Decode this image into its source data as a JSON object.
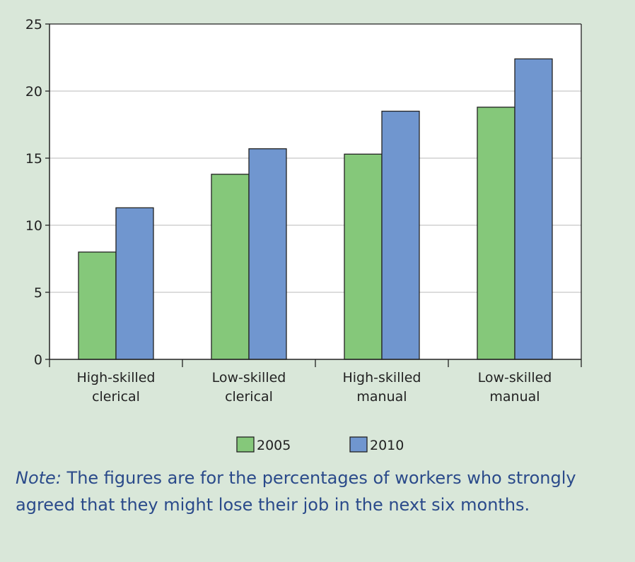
{
  "chart_data": {
    "type": "bar",
    "categories": [
      "High-skilled clerical",
      "Low-skilled clerical",
      "High-skilled manual",
      "Low-skilled manual"
    ],
    "category_lines": [
      [
        "High-skilled",
        "clerical"
      ],
      [
        "Low-skilled",
        "clerical"
      ],
      [
        "High-skilled",
        "manual"
      ],
      [
        "Low-skilled",
        "manual"
      ]
    ],
    "series": [
      {
        "name": "2005",
        "values": [
          8.0,
          13.8,
          15.3,
          18.8
        ],
        "color": "#85c87a"
      },
      {
        "name": "2010",
        "values": [
          11.3,
          15.7,
          18.5,
          22.4
        ],
        "color": "#7096cf"
      }
    ],
    "ylim": [
      0,
      25
    ],
    "yticks": [
      0,
      5,
      10,
      15,
      20,
      25
    ],
    "grid": true,
    "legend_position": "bottom-center",
    "title": "",
    "xlabel": "",
    "ylabel": ""
  },
  "note": {
    "label": "Note:",
    "text": " The figures are for the percentages of workers who strongly agreed that they might lose their job in the next six months."
  },
  "colors": {
    "panel_background": "#d9e7d9",
    "plot_background": "#ffffff",
    "note_text": "#2a4a8a"
  }
}
